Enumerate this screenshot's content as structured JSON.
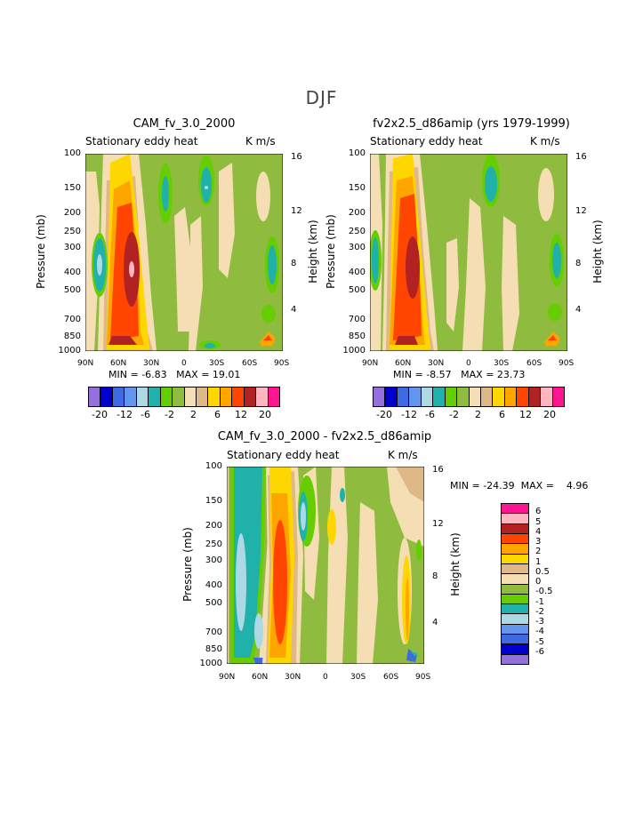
{
  "season": "DJF",
  "panels": [
    {
      "title": "CAM_fv_3.0_2000",
      "subtitle_left": "Stationary eddy heat",
      "subtitle_right": "K m/s",
      "min_label": "MIN = ",
      "min_value": "-6.83",
      "max_label": "MAX = ",
      "max_value": "19.01"
    },
    {
      "title": "fv2x2.5_d86amip (yrs 1979-1999)",
      "subtitle_left": "Stationary eddy heat",
      "subtitle_right": "K m/s",
      "min_label": "MIN = ",
      "min_value": "-8.57",
      "max_label": "MAX = ",
      "max_value": "23.73"
    },
    {
      "title": "CAM_fv_3.0_2000 - fv2x2.5_d86amip",
      "subtitle_left": "Stationary eddy heat",
      "subtitle_right": "K m/s",
      "min_label": "MIN = ",
      "min_value": "-24.39",
      "max_label": "MAX = ",
      "max_value": "4.96"
    }
  ],
  "axes": {
    "ylabel": "Pressure (mb)",
    "y2label": "Height (km)",
    "pressure_ticks": [
      "100",
      "150",
      "200",
      "250",
      "300",
      "400",
      "500",
      "700",
      "850",
      "1000"
    ],
    "height_ticks": [
      "16",
      "12",
      "8",
      "4"
    ],
    "lat_ticks": [
      "90N",
      "60N",
      "30N",
      "0",
      "30S",
      "60S",
      "90S"
    ]
  },
  "colorbar_main": {
    "colors": [
      "#9370db",
      "#0000cd",
      "#4169e1",
      "#6495ed",
      "#add8e6",
      "#20b2aa",
      "#66cd00",
      "#8fbc3f",
      "#f5deb3",
      "#deb887",
      "#ffd700",
      "#ffa500",
      "#ff4500",
      "#b22222",
      "#ffb6c1",
      "#ff1493"
    ],
    "labels": [
      "-20",
      "-12",
      "-6",
      "-2",
      "2",
      "6",
      "12",
      "20"
    ]
  },
  "colorbar_diff": {
    "colors": [
      "#ff1493",
      "#ffb6c1",
      "#b22222",
      "#ff4500",
      "#ffa500",
      "#ffd700",
      "#deb887",
      "#f5deb3",
      "#8fbc3f",
      "#66cd00",
      "#20b2aa",
      "#add8e6",
      "#6495ed",
      "#4169e1",
      "#0000cd",
      "#9370db"
    ],
    "labels": [
      "6",
      "5",
      "4",
      "3",
      "2",
      "1",
      "0.5",
      "0",
      "-0.5",
      "-1",
      "-2",
      "-3",
      "-4",
      "-5",
      "-6"
    ]
  },
  "chart_data": [
    {
      "type": "heatmap",
      "title": "CAM_fv_3.0_2000",
      "variable": "Stationary eddy heat",
      "units": "K m/s",
      "x": [
        "90N",
        "60N",
        "30N",
        "0",
        "30S",
        "60S",
        "90S"
      ],
      "y_pressure_mb": [
        100,
        150,
        200,
        250,
        300,
        400,
        500,
        700,
        850,
        1000
      ],
      "min": -6.83,
      "max": 19.01
    },
    {
      "type": "heatmap",
      "title": "fv2x2.5_d86amip (yrs 1979-1999)",
      "variable": "Stationary eddy heat",
      "units": "K m/s",
      "x": [
        "90N",
        "60N",
        "30N",
        "0",
        "30S",
        "60S",
        "90S"
      ],
      "y_pressure_mb": [
        100,
        150,
        200,
        250,
        300,
        400,
        500,
        700,
        850,
        1000
      ],
      "min": -8.57,
      "max": 23.73
    },
    {
      "type": "heatmap",
      "title": "CAM_fv_3.0_2000 - fv2x2.5_d86amip",
      "variable": "Stationary eddy heat",
      "units": "K m/s",
      "x": [
        "90N",
        "60N",
        "30N",
        "0",
        "30S",
        "60S",
        "90S"
      ],
      "y_pressure_mb": [
        100,
        150,
        200,
        250,
        300,
        400,
        500,
        700,
        850,
        1000
      ],
      "min": -24.39,
      "max": 4.96
    }
  ]
}
